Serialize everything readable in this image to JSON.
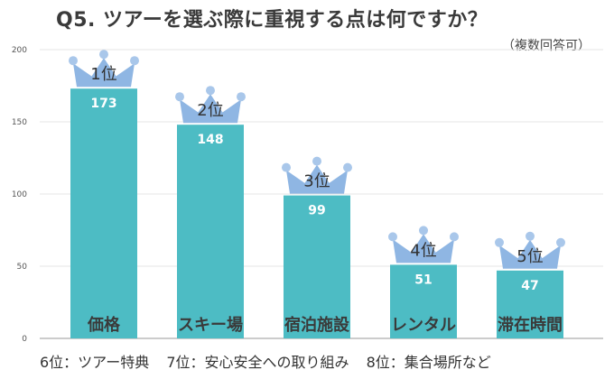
{
  "title": "Q5. ツアーを選ぶ際に重視する点は何ですか？",
  "subtitle": "（複数回答可）",
  "colors": {
    "bar": "#4dbcc4",
    "crown": "#8fb6e3",
    "crown_dot": "#a9c7ea",
    "grid": "#e6e6e6",
    "axis": "#9a9a9a"
  },
  "chart_data": {
    "type": "bar",
    "categories": [
      "価格",
      "スキー場",
      "宿泊施設",
      "レンタル",
      "滞在時間"
    ],
    "values": [
      173,
      148,
      99,
      51,
      47
    ],
    "ranks": [
      "1位",
      "2位",
      "3位",
      "4位",
      "5位"
    ],
    "ylim": [
      0,
      200
    ],
    "yticks": [
      0,
      50,
      100,
      150,
      200
    ],
    "grid": true,
    "title": "Q5. ツアーを選ぶ際に重視する点は何ですか？",
    "xlabel": "",
    "ylabel": ""
  },
  "footnote": [
    "6位：ツアー特典",
    "7位：安心安全への取り組み",
    "8位：集合場所など"
  ]
}
